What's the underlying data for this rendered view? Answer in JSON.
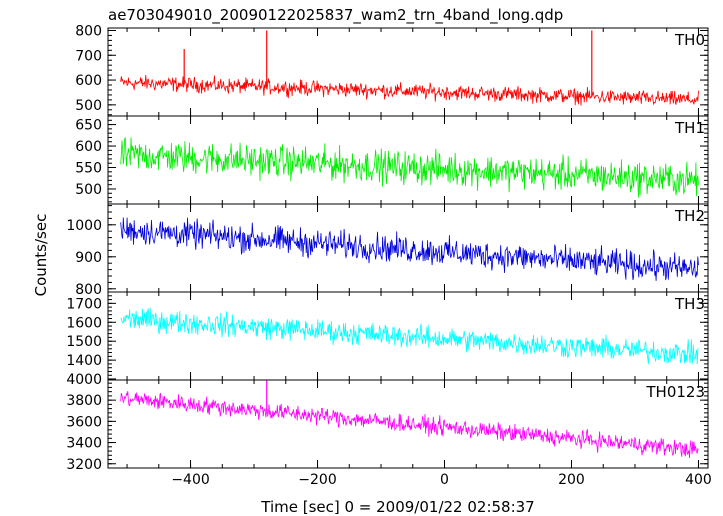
{
  "chart_data": {
    "type": "line",
    "title": "ae703049010_20090122025837_wam2_trn_4band_long.qdp",
    "xlabel": "Time [sec] 0 = 2009/01/22 02:58:37",
    "ylabel": "Counts/sec",
    "xlim": [
      -530,
      415
    ],
    "xticks": [
      -400,
      -200,
      0,
      200,
      400
    ],
    "xtick_labels": [
      "−400",
      "−200",
      "0",
      "200",
      "400"
    ],
    "panels": [
      {
        "name": "TH0",
        "color": "#ff0000",
        "ylim": [
          455,
          810
        ],
        "yticks": [
          500,
          600,
          700,
          800
        ],
        "start_value": 590,
        "end_value": 520,
        "noise": 28,
        "spikes": [
          {
            "x": -410,
            "y": 725
          },
          {
            "x": -280,
            "y": 800
          },
          {
            "x": 232,
            "y": 800
          }
        ]
      },
      {
        "name": "TH1",
        "color": "#00ee00",
        "ylim": [
          465,
          670
        ],
        "yticks": [
          500,
          550,
          600,
          650
        ],
        "start_value": 580,
        "end_value": 520,
        "noise": 35,
        "spikes": []
      },
      {
        "name": "TH2",
        "color": "#0000dd",
        "ylim": [
          790,
          1065
        ],
        "yticks": [
          800,
          900,
          1000
        ],
        "start_value": 985,
        "end_value": 860,
        "noise": 40,
        "spikes": []
      },
      {
        "name": "TH3",
        "color": "#00ffff",
        "ylim": [
          1295,
          1760
        ],
        "yticks": [
          1400,
          1500,
          1600,
          1700
        ],
        "start_value": 1620,
        "end_value": 1430,
        "noise": 55,
        "spikes": []
      },
      {
        "name": "TH0123",
        "color": "#ff00ff",
        "ylim": [
          3160,
          3990
        ],
        "yticks": [
          3200,
          3400,
          3600,
          3800,
          4000
        ],
        "start_value": 3820,
        "end_value": 3330,
        "noise": 75,
        "spikes": [
          {
            "x": -280,
            "y": 3985
          }
        ]
      }
    ],
    "data_x_range": [
      -510,
      400
    ],
    "grid": false
  }
}
